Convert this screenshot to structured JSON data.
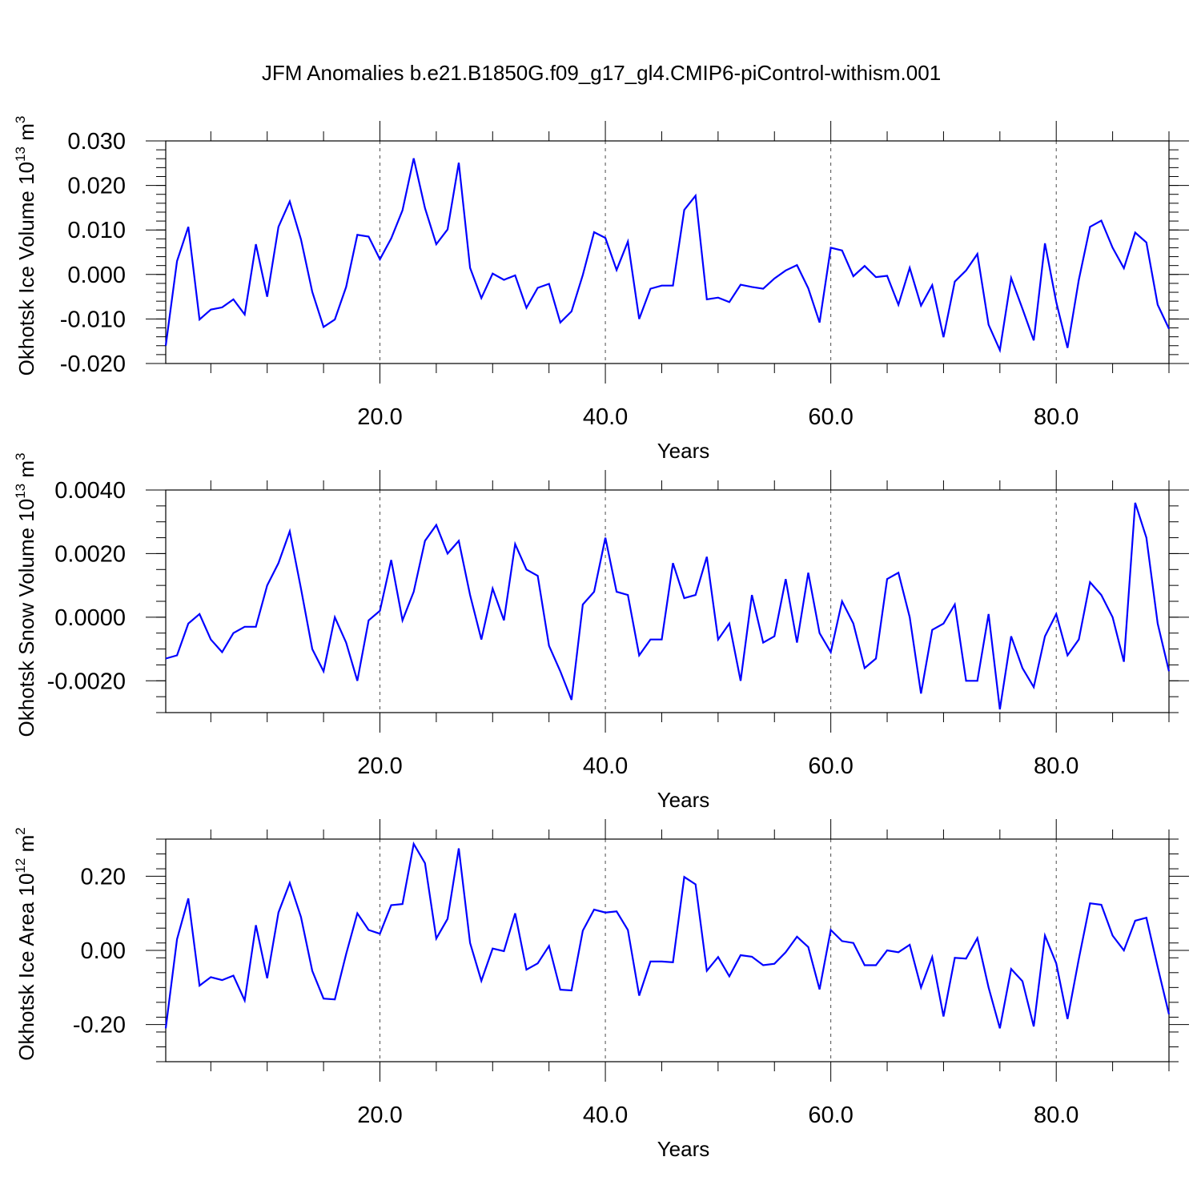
{
  "figure": {
    "title": "JFM Anomalies b.e21.B1850G.f09_g17_gl4.CMIP6-piControl-withism.001"
  },
  "chart_data": [
    {
      "type": "line",
      "ylabel": "Okhotsk Ice Volume 10",
      "ylabel_exp": "13",
      "ylabel_unit": " m",
      "ylabel_unit_exp": "3",
      "xlabel": "Years",
      "xlim": [
        1,
        90
      ],
      "ylim": [
        -0.02,
        0.03
      ],
      "yticks": [
        -0.02,
        -0.01,
        0.0,
        0.01,
        0.02,
        0.03
      ],
      "ytick_labels": [
        "-0.020",
        "-0.010",
        "0.000",
        "0.010",
        "0.020",
        "0.030"
      ],
      "xticks": [
        20,
        40,
        60,
        80
      ],
      "xtick_labels": [
        "20.0",
        "40.0",
        "60.0",
        "80.0"
      ],
      "minor_xticks": [
        5,
        10,
        15,
        25,
        30,
        35,
        45,
        50,
        55,
        65,
        70,
        75,
        85,
        90
      ],
      "minor_ystep": 0.002,
      "grid_x_dashed": true,
      "line_color": "#0000ff",
      "series": [
        {
          "values": [
            -0.016,
            0.003,
            0.0107,
            -0.0101,
            -0.0079,
            -0.0074,
            -0.0056,
            -0.009,
            0.0068,
            -0.005,
            0.0107,
            0.0164,
            0.0079,
            -0.0039,
            -0.0118,
            -0.0101,
            -0.0028,
            0.0089,
            0.0085,
            0.0034,
            0.0081,
            0.0144,
            0.0261,
            0.0149,
            0.0068,
            0.0101,
            0.0251,
            0.0015,
            -0.0053,
            0.0002,
            -0.0012,
            -0.0002,
            -0.0075,
            -0.003,
            -0.0021,
            -0.0108,
            -0.0083,
            -0.0001,
            0.0095,
            0.0082,
            0.001,
            0.0074,
            -0.01,
            -0.0032,
            -0.0025,
            -0.0025,
            0.0145,
            0.0177,
            -0.0056,
            -0.0052,
            -0.0062,
            -0.0023,
            -0.0028,
            -0.0032,
            -0.0009,
            0.0009,
            0.0021,
            -0.0031,
            -0.0108,
            0.006,
            0.0054,
            -0.0004,
            0.0019,
            -0.0006,
            -0.0003,
            -0.0068,
            0.0015,
            -0.007,
            -0.0024,
            -0.0141,
            -0.0016,
            0.0009,
            0.0046,
            -0.0113,
            -0.017,
            -0.0008,
            -0.0077,
            -0.0148,
            0.007,
            -0.0062,
            -0.0165,
            -0.0012,
            0.0107,
            0.0121,
            0.006,
            0.0014,
            0.0094,
            0.0072,
            -0.0068,
            -0.0122
          ]
        }
      ]
    },
    {
      "type": "line",
      "ylabel": "Okhotsk Snow Volume 10",
      "ylabel_exp": "13",
      "ylabel_unit": " m",
      "ylabel_unit_exp": "3",
      "xlabel": "Years",
      "xlim": [
        1,
        90
      ],
      "ylim": [
        -0.003,
        0.004
      ],
      "yticks": [
        -0.002,
        0.0,
        0.002,
        0.004
      ],
      "ytick_labels": [
        "-0.0020",
        "0.0000",
        "0.0020",
        "0.0040"
      ],
      "xticks": [
        20,
        40,
        60,
        80
      ],
      "xtick_labels": [
        "20.0",
        "40.0",
        "60.0",
        "80.0"
      ],
      "minor_xticks": [
        5,
        10,
        15,
        25,
        30,
        35,
        45,
        50,
        55,
        65,
        70,
        75,
        85,
        90
      ],
      "minor_ystep": 0.0005,
      "grid_x_dashed": true,
      "line_color": "#0000ff",
      "series": [
        {
          "values": [
            -0.0013,
            -0.0012,
            -0.0002,
            0.0001,
            -0.0007,
            -0.0011,
            -0.0005,
            -0.0003,
            -0.0003,
            0.001,
            0.0017,
            0.0027,
            0.0009,
            -0.001,
            -0.0017,
            0.0,
            -0.0008,
            -0.002,
            -0.0001,
            0.0002,
            0.0018,
            -0.0001,
            0.0008,
            0.0024,
            0.0029,
            0.002,
            0.0024,
            0.0007,
            -0.0007,
            0.0009,
            -0.0001,
            0.0023,
            0.0015,
            0.0013,
            -0.0009,
            -0.0017,
            -0.0026,
            0.0004,
            0.0008,
            0.0025,
            0.0008,
            0.0007,
            -0.0012,
            -0.0007,
            -0.0007,
            0.0017,
            0.0006,
            0.0007,
            0.0019,
            -0.0007,
            -0.0002,
            -0.002,
            0.0007,
            -0.0008,
            -0.0006,
            0.0012,
            -0.0008,
            0.0014,
            -0.0005,
            -0.0011,
            0.0005,
            -0.0002,
            -0.0016,
            -0.0013,
            0.0012,
            0.0014,
            0.0,
            -0.0024,
            -0.0004,
            -0.0002,
            0.0004,
            -0.002,
            -0.002,
            0.0001,
            -0.0029,
            -0.0006,
            -0.0016,
            -0.0022,
            -0.0006,
            0.0001,
            -0.0012,
            -0.0007,
            0.0011,
            0.0007,
            0.0,
            -0.0014,
            0.0036,
            0.0025,
            -0.0002,
            -0.0017
          ]
        }
      ]
    },
    {
      "type": "line",
      "ylabel": "Okhotsk Ice Area 10",
      "ylabel_exp": "12",
      "ylabel_unit": " m",
      "ylabel_unit_exp": "2",
      "xlabel": "Years",
      "xlim": [
        1,
        90
      ],
      "ylim": [
        -0.3,
        0.3
      ],
      "yticks": [
        -0.2,
        0.0,
        0.2
      ],
      "ytick_labels": [
        "-0.20",
        "0.00",
        "0.20"
      ],
      "xticks": [
        20,
        40,
        60,
        80
      ],
      "xtick_labels": [
        "20.0",
        "40.0",
        "60.0",
        "80.0"
      ],
      "minor_xticks": [
        5,
        10,
        15,
        25,
        30,
        35,
        45,
        50,
        55,
        65,
        70,
        75,
        85,
        90
      ],
      "minor_ystep": 0.04,
      "grid_x_dashed": true,
      "line_color": "#0000ff",
      "series": [
        {
          "values": [
            -0.21,
            0.03,
            0.14,
            -0.095,
            -0.072,
            -0.08,
            -0.068,
            -0.135,
            0.068,
            -0.075,
            0.102,
            0.182,
            0.09,
            -0.055,
            -0.13,
            -0.132,
            -0.01,
            0.1,
            0.055,
            0.045,
            0.122,
            0.125,
            0.287,
            0.235,
            0.032,
            0.085,
            0.275,
            0.02,
            -0.082,
            0.005,
            -0.002,
            0.1,
            -0.052,
            -0.035,
            0.012,
            -0.106,
            -0.108,
            0.053,
            0.11,
            0.102,
            0.105,
            0.055,
            -0.122,
            -0.03,
            -0.03,
            -0.032,
            0.198,
            0.178,
            -0.055,
            -0.018,
            -0.07,
            -0.013,
            -0.017,
            -0.04,
            -0.036,
            -0.005,
            0.037,
            0.009,
            -0.105,
            0.055,
            0.025,
            0.02,
            -0.04,
            -0.04,
            0.0,
            -0.005,
            0.015,
            -0.1,
            -0.018,
            -0.178,
            -0.02,
            -0.022,
            0.033,
            -0.1,
            -0.21,
            -0.05,
            -0.083,
            -0.205,
            0.04,
            -0.035,
            -0.185,
            -0.023,
            0.127,
            0.123,
            0.04,
            0.0,
            0.08,
            0.088,
            -0.045,
            -0.172
          ]
        }
      ]
    }
  ]
}
